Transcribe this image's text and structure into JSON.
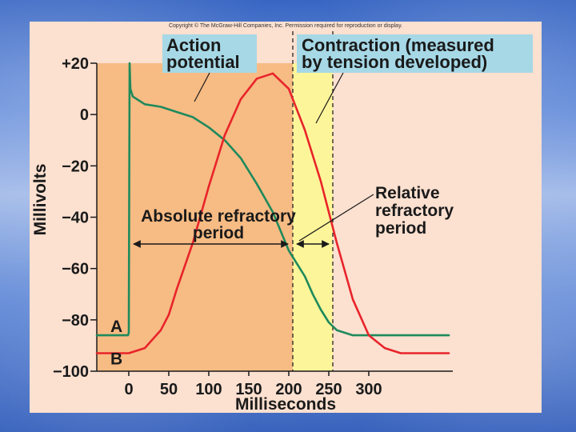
{
  "copyright": "Copyright © The McGraw-Hill Companies, Inc. Permission required for reproduction or display.",
  "colors": {
    "figure_bg": "#fce0d0",
    "absolute_region": "#f7bb84",
    "relative_region": "#fdf59a",
    "callout_bg": "#a6d8e6",
    "action_potential": "#1f8a5c",
    "contraction": "#e8242a"
  },
  "chart_data": {
    "type": "line",
    "title": "",
    "xlabel": "Milliseconds",
    "ylabel": "Millivolts",
    "xlim": [
      -40,
      400
    ],
    "ylim": [
      -100,
      20
    ],
    "x_ticks": [
      "0",
      "50",
      "100",
      "150",
      "200",
      "250",
      "300"
    ],
    "x_tick_values": [
      0,
      50,
      100,
      150,
      200,
      250,
      300
    ],
    "y_ticks": [
      "+20",
      "0",
      "−20",
      "−40",
      "−60",
      "−80",
      "−100"
    ],
    "y_tick_values": [
      20,
      0,
      -20,
      -40,
      -60,
      -80,
      -100
    ],
    "regions": [
      {
        "name": "Absolute refractory period",
        "x_start": -40,
        "x_end": 205
      },
      {
        "name": "Relative refractory period",
        "x_start": 205,
        "x_end": 255
      }
    ],
    "series": [
      {
        "name": "Action potential",
        "label": "A",
        "x": [
          -40,
          -1,
          0,
          1,
          2,
          5,
          10,
          20,
          40,
          60,
          80,
          100,
          120,
          140,
          160,
          180,
          200,
          210,
          220,
          230,
          240,
          250,
          260,
          280,
          300,
          320,
          400
        ],
        "y": [
          -86,
          -86,
          -85,
          20,
          10,
          7,
          6,
          4,
          3,
          1,
          -1,
          -5,
          -10,
          -17,
          -27,
          -38,
          -53,
          -58,
          -63,
          -70,
          -76,
          -81,
          -84,
          -86,
          -86,
          -86,
          -86
        ]
      },
      {
        "name": "Contraction (measured by tension developed)",
        "label": "B",
        "x": [
          -40,
          0,
          20,
          40,
          50,
          60,
          80,
          100,
          120,
          140,
          160,
          180,
          200,
          220,
          240,
          260,
          280,
          300,
          320,
          340,
          360,
          400
        ],
        "y": [
          -93,
          -93,
          -91,
          -84,
          -78,
          -68,
          -50,
          -28,
          -8,
          6,
          14,
          16,
          10,
          -6,
          -26,
          -50,
          -72,
          -86,
          -91,
          -93,
          -93,
          -93
        ]
      }
    ],
    "annotations": [
      {
        "lines": [
          "Absolute refractory",
          "period"
        ]
      },
      {
        "lines": [
          "Relative",
          "refractory",
          "period"
        ]
      }
    ]
  },
  "callouts": {
    "action": [
      "Action",
      "potential"
    ],
    "contraction": [
      "Contraction (measured",
      "by tension developed)"
    ]
  }
}
